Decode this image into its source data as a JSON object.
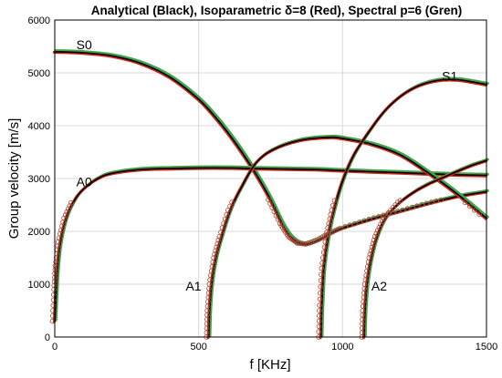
{
  "chart_data": {
    "type": "line",
    "title": "Analytical (Black), Isoparametric δ=8 (Red),  Spectral p=6 (Gren)",
    "xlabel": "f [KHz]",
    "ylabel": "Group velocity [m/s]",
    "xlim": [
      0,
      1500
    ],
    "ylim": [
      0,
      6000
    ],
    "xticks": [
      0,
      500,
      1000,
      1500
    ],
    "yticks": [
      0,
      1000,
      2000,
      3000,
      4000,
      5000,
      6000
    ],
    "grid": true,
    "colors": {
      "analytical": "#000000",
      "isoparametric": "#cc2a1a",
      "spectral": "#3aa84a",
      "markers": "#9a4a3a"
    },
    "mode_labels": [
      {
        "text": "S0",
        "x": 75,
        "y": 5450
      },
      {
        "text": "A0",
        "x": 75,
        "y": 2850
      },
      {
        "text": "A1",
        "x": 455,
        "y": 880
      },
      {
        "text": "S1",
        "x": 1345,
        "y": 4850
      },
      {
        "text": "A2",
        "x": 1100,
        "y": 880
      }
    ],
    "series": [
      {
        "mode": "S0",
        "points": [
          [
            0,
            5400
          ],
          [
            100,
            5380
          ],
          [
            200,
            5320
          ],
          [
            300,
            5180
          ],
          [
            400,
            4920
          ],
          [
            500,
            4500
          ],
          [
            560,
            4150
          ],
          [
            600,
            3880
          ],
          [
            650,
            3500
          ],
          [
            700,
            3080
          ],
          [
            750,
            2600
          ],
          [
            790,
            2150
          ],
          [
            820,
            1900
          ],
          [
            850,
            1780
          ],
          [
            880,
            1760
          ],
          [
            920,
            1840
          ],
          [
            960,
            1960
          ],
          [
            1000,
            2060
          ],
          [
            1100,
            2230
          ],
          [
            1200,
            2380
          ],
          [
            1300,
            2530
          ],
          [
            1400,
            2660
          ],
          [
            1500,
            2750
          ]
        ]
      },
      {
        "mode": "A0",
        "points": [
          [
            0,
            300
          ],
          [
            5,
            900
          ],
          [
            10,
            1350
          ],
          [
            20,
            1800
          ],
          [
            40,
            2250
          ],
          [
            70,
            2600
          ],
          [
            100,
            2800
          ],
          [
            150,
            3000
          ],
          [
            200,
            3100
          ],
          [
            300,
            3170
          ],
          [
            400,
            3190
          ],
          [
            500,
            3200
          ],
          [
            600,
            3200
          ],
          [
            700,
            3190
          ],
          [
            800,
            3180
          ],
          [
            900,
            3170
          ],
          [
            1000,
            3150
          ],
          [
            1100,
            3130
          ],
          [
            1200,
            3110
          ],
          [
            1300,
            3090
          ],
          [
            1400,
            3070
          ],
          [
            1500,
            3060
          ]
        ]
      },
      {
        "mode": "A1",
        "points": [
          [
            535,
            0
          ],
          [
            538,
            500
          ],
          [
            545,
            1000
          ],
          [
            560,
            1500
          ],
          [
            580,
            1900
          ],
          [
            610,
            2400
          ],
          [
            650,
            2850
          ],
          [
            700,
            3300
          ],
          [
            760,
            3550
          ],
          [
            850,
            3720
          ],
          [
            950,
            3780
          ],
          [
            1000,
            3760
          ],
          [
            1100,
            3650
          ],
          [
            1200,
            3450
          ],
          [
            1300,
            3100
          ],
          [
            1400,
            2700
          ],
          [
            1500,
            2250
          ]
        ]
      },
      {
        "mode": "S1",
        "points": [
          [
            925,
            0
          ],
          [
            928,
            600
          ],
          [
            935,
            1300
          ],
          [
            950,
            1900
          ],
          [
            970,
            2400
          ],
          [
            1000,
            2950
          ],
          [
            1040,
            3450
          ],
          [
            1100,
            3950
          ],
          [
            1150,
            4300
          ],
          [
            1200,
            4550
          ],
          [
            1250,
            4720
          ],
          [
            1300,
            4820
          ],
          [
            1350,
            4870
          ],
          [
            1400,
            4870
          ],
          [
            1450,
            4830
          ],
          [
            1500,
            4780
          ]
        ]
      },
      {
        "mode": "A2",
        "points": [
          [
            1075,
            0
          ],
          [
            1078,
            500
          ],
          [
            1085,
            1000
          ],
          [
            1100,
            1500
          ],
          [
            1120,
            1900
          ],
          [
            1150,
            2250
          ],
          [
            1200,
            2550
          ],
          [
            1250,
            2750
          ],
          [
            1300,
            2900
          ],
          [
            1350,
            3020
          ],
          [
            1400,
            3140
          ],
          [
            1450,
            3250
          ],
          [
            1500,
            3340
          ]
        ]
      }
    ]
  }
}
